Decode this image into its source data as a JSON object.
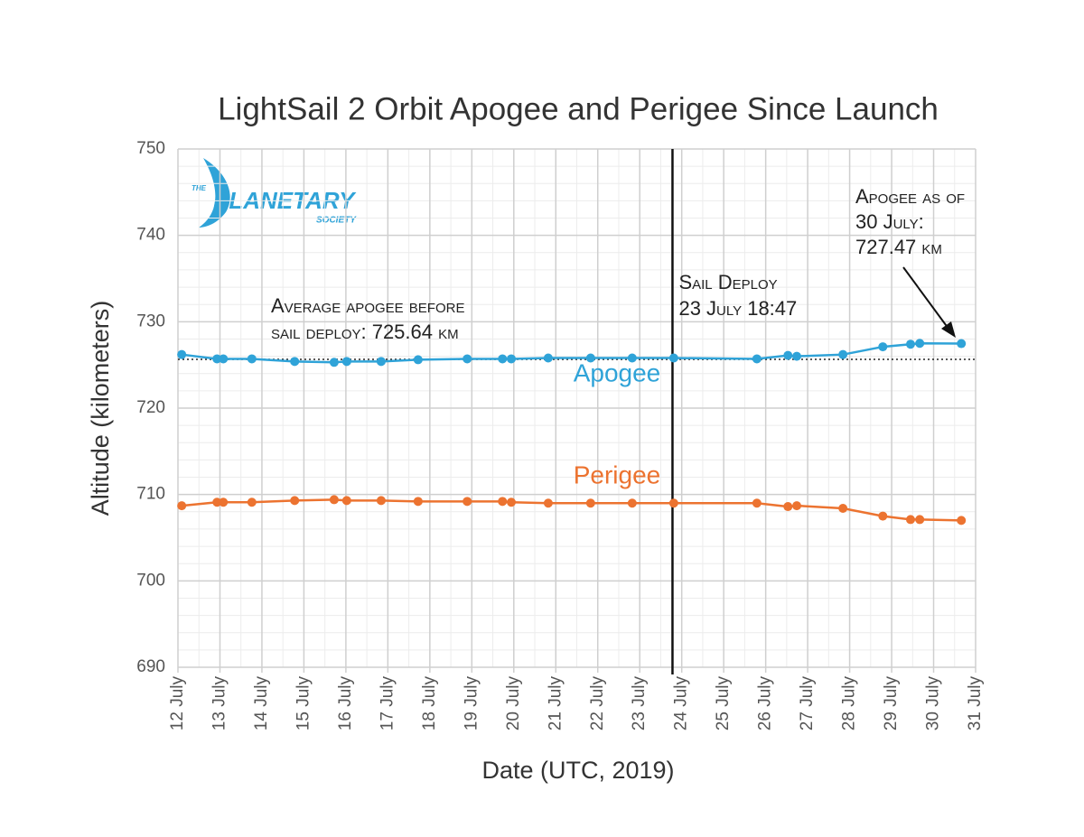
{
  "chart_data": {
    "type": "line",
    "title": "LightSail 2 Orbit Apogee and Perigee Since Launch",
    "xlabel": "Date (UTC, 2019)",
    "ylabel": "Altitude (kilometers)",
    "xlim": [
      12,
      31
    ],
    "xticks": [
      {
        "value": 12,
        "label": "12 July"
      },
      {
        "value": 13,
        "label": "13 July"
      },
      {
        "value": 14,
        "label": "14 July"
      },
      {
        "value": 15,
        "label": "15 July"
      },
      {
        "value": 16,
        "label": "16 July"
      },
      {
        "value": 17,
        "label": "17 July"
      },
      {
        "value": 18,
        "label": "18 July"
      },
      {
        "value": 19,
        "label": "19 July"
      },
      {
        "value": 20,
        "label": "20 July"
      },
      {
        "value": 21,
        "label": "21 July"
      },
      {
        "value": 22,
        "label": "22 July"
      },
      {
        "value": 23,
        "label": "23 July"
      },
      {
        "value": 24,
        "label": "24 July"
      },
      {
        "value": 25,
        "label": "25 July"
      },
      {
        "value": 26,
        "label": "26 July"
      },
      {
        "value": 27,
        "label": "27 July"
      },
      {
        "value": 28,
        "label": "28 July"
      },
      {
        "value": 29,
        "label": "29 July"
      },
      {
        "value": 30,
        "label": "30 July"
      },
      {
        "value": 31,
        "label": "31 July"
      }
    ],
    "ylim": [
      690,
      750
    ],
    "yticks": [
      690,
      700,
      710,
      720,
      730,
      740,
      750
    ],
    "grid": true,
    "minor_grid": true,
    "x": [
      12.09,
      12.93,
      13.08,
      13.76,
      14.78,
      15.72,
      16.02,
      16.84,
      17.72,
      18.89,
      19.73,
      19.94,
      20.82,
      21.83,
      22.82,
      23.81,
      25.79,
      26.53,
      26.74,
      27.84,
      28.79,
      29.45,
      29.67,
      30.66
    ],
    "series": [
      {
        "name": "Apogee",
        "color": "#2fa3d8",
        "values": [
          726.2,
          725.7,
          725.7,
          725.7,
          725.4,
          725.3,
          725.4,
          725.4,
          725.6,
          725.7,
          725.7,
          725.7,
          725.8,
          725.8,
          725.8,
          725.8,
          725.7,
          726.1,
          726.0,
          726.2,
          727.1,
          727.4,
          727.5,
          727.47
        ]
      },
      {
        "name": "Perigee",
        "color": "#ec7330",
        "values": [
          708.7,
          709.1,
          709.1,
          709.1,
          709.3,
          709.4,
          709.3,
          709.3,
          709.2,
          709.2,
          709.2,
          709.1,
          709.0,
          709.0,
          709.0,
          709.0,
          709.0,
          708.6,
          708.7,
          708.4,
          707.5,
          707.1,
          707.1,
          707.0
        ]
      }
    ],
    "reference_lines": [
      {
        "axis": "y",
        "value": 725.64,
        "label": [
          "Average apogee before",
          "sail deploy: 725.64 km"
        ]
      },
      {
        "axis": "x",
        "value": 23.78,
        "label": [
          "Sail Deploy",
          "23 July 18:47"
        ]
      }
    ],
    "annotations": [
      {
        "label": [
          "Apogee as of",
          "30 July:",
          "727.47 km"
        ]
      }
    ],
    "logo": {
      "top": "THE",
      "main": "PLANETARY",
      "bottom": "SOCIETY"
    }
  }
}
